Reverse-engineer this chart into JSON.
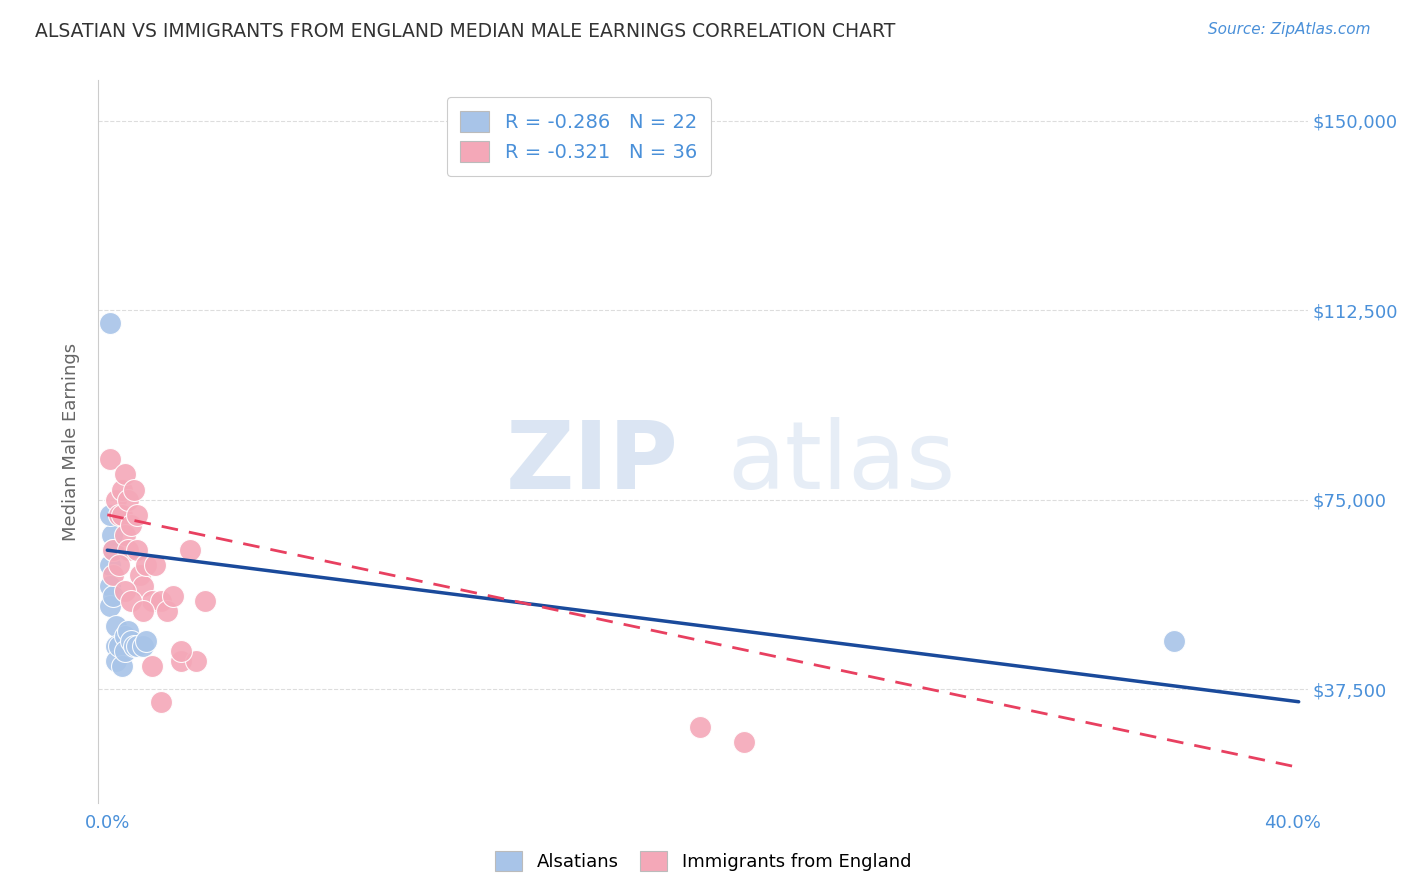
{
  "title": "ALSATIAN VS IMMIGRANTS FROM ENGLAND MEDIAN MALE EARNINGS CORRELATION CHART",
  "source": "Source: ZipAtlas.com",
  "ylabel": "Median Male Earnings",
  "y_ticks": [
    37500,
    75000,
    112500,
    150000
  ],
  "y_tick_labels": [
    "$37,500",
    "$75,000",
    "$112,500",
    "$150,000"
  ],
  "y_min": 15000,
  "y_max": 158000,
  "x_min": -0.003,
  "x_max": 0.405,
  "legend_blue_r": "-0.286",
  "legend_blue_n": "22",
  "legend_pink_r": "-0.321",
  "legend_pink_n": "36",
  "blue_color": "#A8C4E8",
  "pink_color": "#F4A8B8",
  "blue_line_color": "#1A4A9B",
  "pink_line_color": "#E84060",
  "background_color": "#FFFFFF",
  "grid_color": "#DDDDDD",
  "title_color": "#333333",
  "axis_label_color": "#666666",
  "tick_color": "#4A90D9",
  "blue_line_y0": 65000,
  "blue_line_y1": 35000,
  "pink_line_y0": 72000,
  "pink_line_y1": 22000,
  "alsatians_x": [
    0.001,
    0.001,
    0.001,
    0.0015,
    0.002,
    0.002,
    0.003,
    0.003,
    0.003,
    0.004,
    0.005,
    0.006,
    0.006,
    0.007,
    0.008,
    0.009,
    0.01,
    0.012,
    0.013,
    0.001,
    0.001,
    0.36
  ],
  "alsatians_y": [
    62000,
    58000,
    54000,
    68000,
    65000,
    56000,
    50000,
    46000,
    43000,
    46000,
    42000,
    48000,
    45000,
    49000,
    47000,
    46000,
    46000,
    46000,
    47000,
    110000,
    72000,
    47000
  ],
  "england_x": [
    0.001,
    0.002,
    0.003,
    0.004,
    0.005,
    0.005,
    0.006,
    0.006,
    0.007,
    0.007,
    0.008,
    0.009,
    0.01,
    0.01,
    0.011,
    0.012,
    0.013,
    0.015,
    0.016,
    0.018,
    0.02,
    0.022,
    0.025,
    0.028,
    0.03,
    0.033,
    0.002,
    0.004,
    0.006,
    0.008,
    0.012,
    0.015,
    0.018,
    0.025,
    0.2,
    0.215
  ],
  "england_y": [
    83000,
    65000,
    75000,
    72000,
    77000,
    72000,
    80000,
    68000,
    75000,
    65000,
    70000,
    77000,
    72000,
    65000,
    60000,
    58000,
    62000,
    55000,
    62000,
    55000,
    53000,
    56000,
    43000,
    65000,
    43000,
    55000,
    60000,
    62000,
    57000,
    55000,
    53000,
    42000,
    35000,
    45000,
    30000,
    27000
  ]
}
